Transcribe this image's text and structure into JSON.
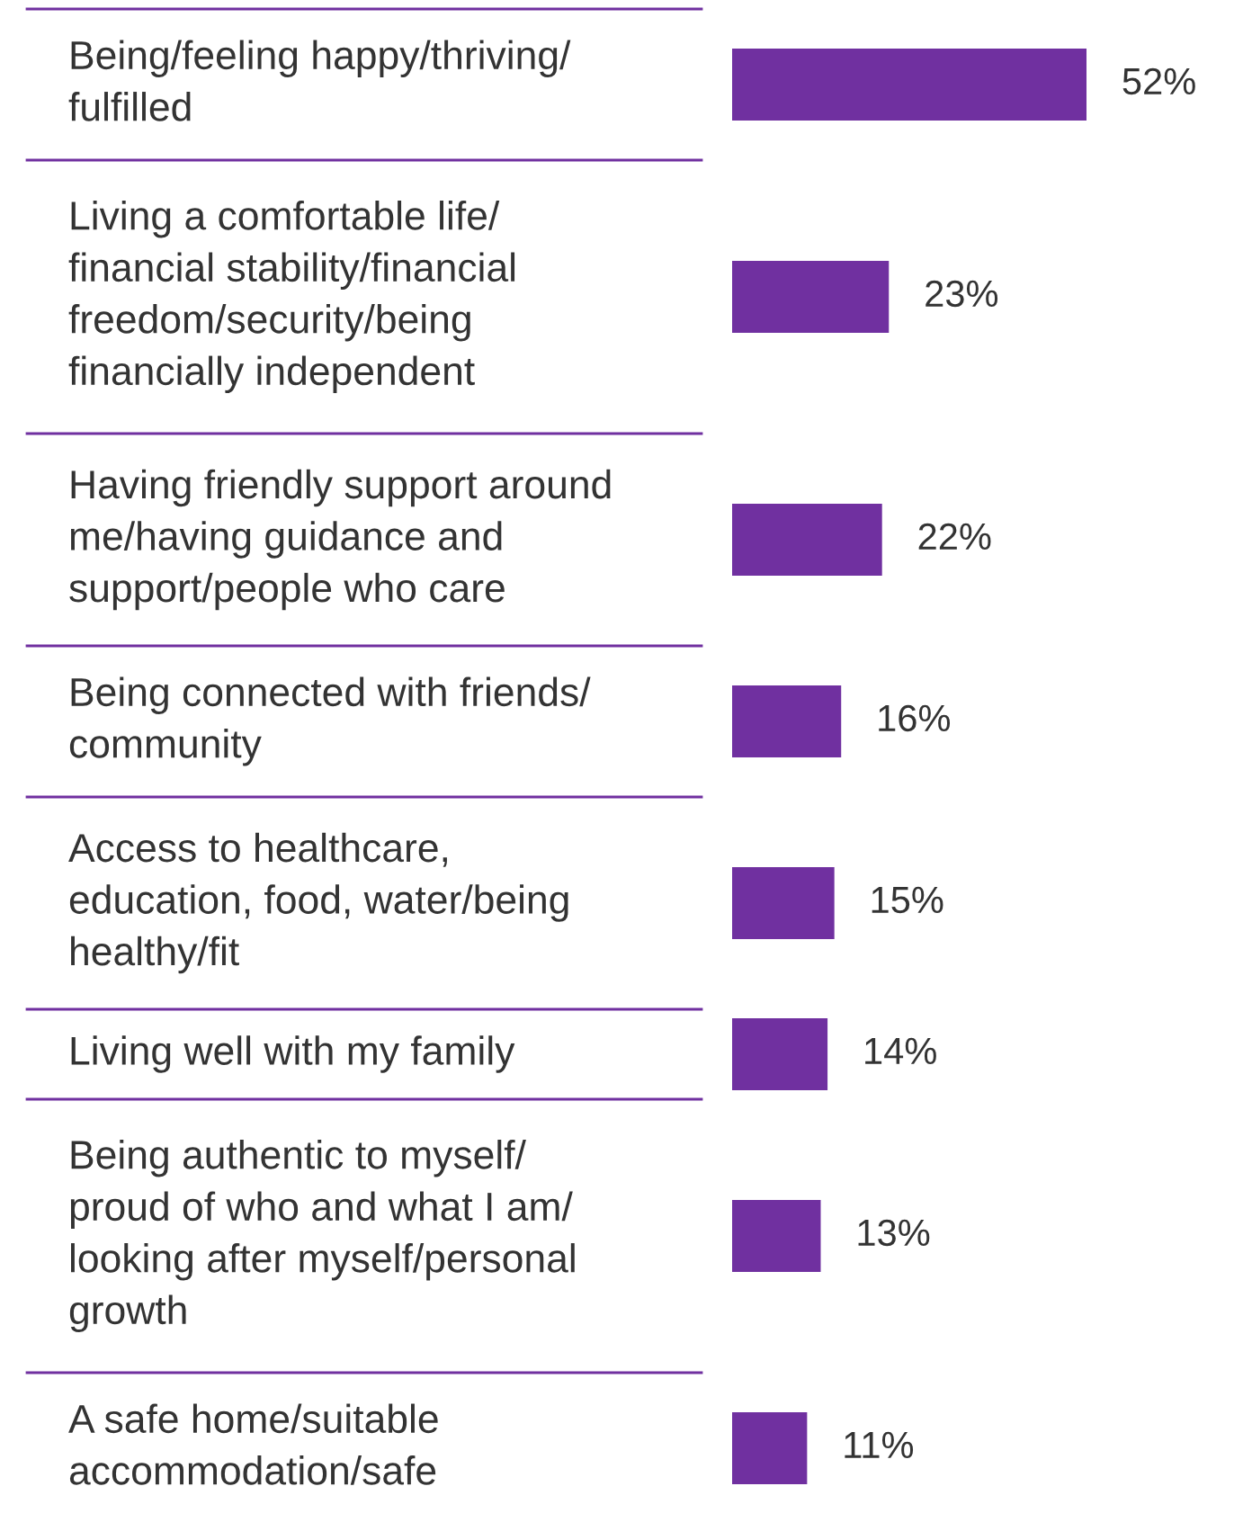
{
  "chart_data": {
    "type": "bar",
    "orientation": "horizontal",
    "categories": [
      "Being/feeling happy/thriving/\nfulfilled",
      "Living a comfortable life/\nfinancial stability/financial\nfreedom/security/being\nfinancially independent",
      "Having friendly support around\nme/having guidance and\nsupport/people who care",
      "Being connected with friends/\ncommunity",
      "Access to healthcare,\neducation, food, water/being\nhealthy/fit",
      "Living well with my family",
      "Being authentic to myself/\nproud of who and what I am/\nlooking after myself/personal\ngrowth",
      "A safe home/suitable\naccommodation/safe"
    ],
    "values": [
      52,
      23,
      22,
      16,
      15,
      14,
      13,
      11
    ],
    "value_labels": [
      "52%",
      "23%",
      "22%",
      "16%",
      "15%",
      "14%",
      "13%",
      "11%"
    ],
    "color": "#7030a0"
  }
}
